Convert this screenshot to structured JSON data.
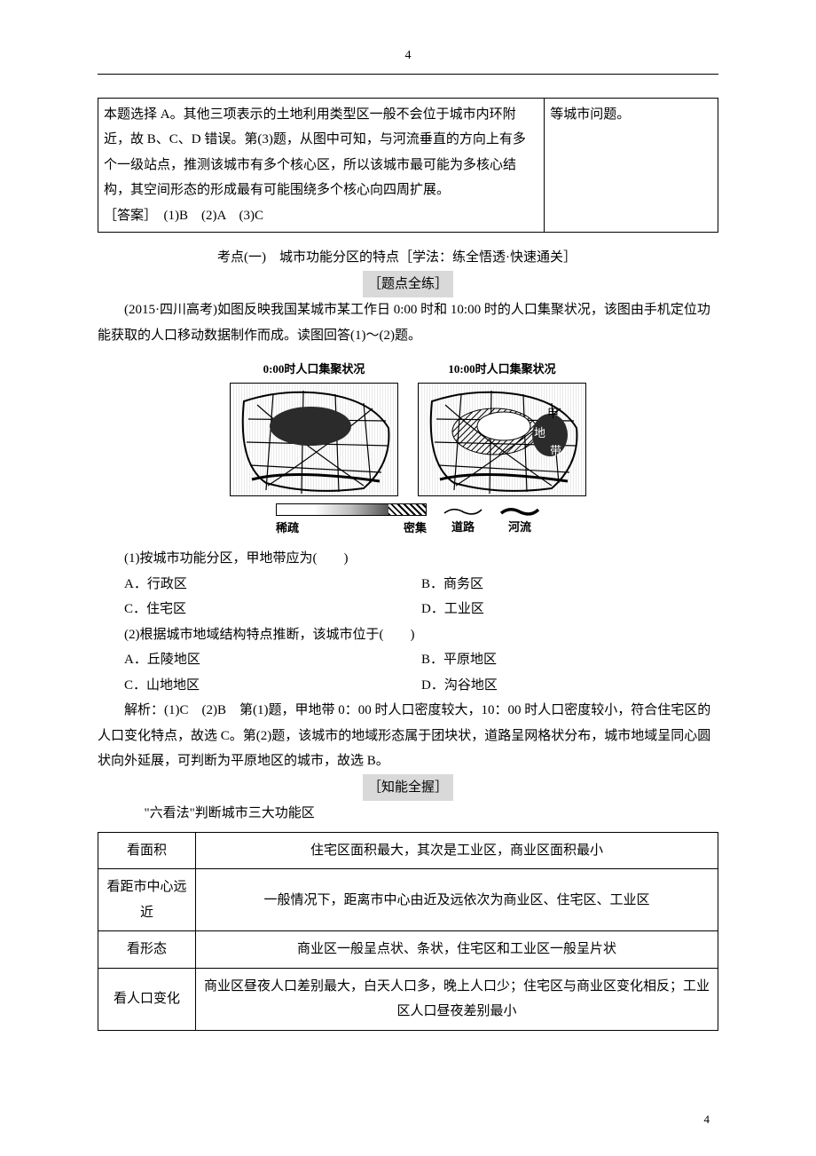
{
  "page_number_top": "4",
  "page_number_bottom": "4",
  "cont": {
    "left": "本题选择 A。其他三项表示的土地利用类型区一般不会位于城市内环附近，故 B、C、D 错误。第(3)题，从图中可知，与河流垂直的方向上有多个一级站点，推测该城市有多个核心区，所以该城市最可能为多核心结构，其空间形态的形成最有可能围绕多个核心向四周扩展。",
    "answer": "［答案］　(1)B　(2)A　(3)C",
    "right": "等城市问题。"
  },
  "section": {
    "kaodian": "考点(一)　城市功能分区的特点［学法：练全悟透·快速通关］",
    "tidian": "［题点全练］",
    "stem_intro": "(2015·四川高考)如图反映我国某城市某工作日 0:00 时和 10:00 时的人口集聚状况，该图由手机定位功能获取的人口移动数据制作而成。读图回答(1)～(2)题。",
    "map_title_left": "0:00时人口集聚状况",
    "map_title_right": "10:00时人口集聚状况",
    "legend_sparse": "稀疏",
    "legend_dense": "密集",
    "legend_road": "道路",
    "legend_river": "河流",
    "annot_jia": "甲",
    "annot_di": "地",
    "annot_dai": "带",
    "colors": {
      "text": "#000000",
      "bg": "#ffffff",
      "highlight_bg": "#d9d9d9",
      "border": "#000000"
    }
  },
  "q1": {
    "stem": "(1)按城市功能分区，甲地带应为(　　)",
    "A": "A．行政区",
    "B": "B．商务区",
    "C": "C．住宅区",
    "D": "D．工业区"
  },
  "q2": {
    "stem": "(2)根据城市地域结构特点推断，该城市位于(　　)",
    "A": "A．丘陵地区",
    "B": "B．平原地区",
    "C": "C．山地地区",
    "D": "D．沟谷地区"
  },
  "jiexi": "解析：(1)C　(2)B　第(1)题，甲地带 0：00 时人口密度较大，10：00 时人口密度较小，符合住宅区的人口变化特点，故选 C。第(2)题，该城市的地域形态属于团块状，道路呈网格状分布，城市地域呈同心圆状向外延展，可判断为平原地区的城市，故选 B。",
  "zhineng_title": "［知能全握］",
  "six_intro": "\"六看法\"判断城市三大功能区",
  "six_table": {
    "rows": [
      {
        "label": "看面积",
        "content": "住宅区面积最大，其次是工业区，商业区面积最小"
      },
      {
        "label": "看距市中心远近",
        "content": "一般情况下，距离市中心由近及远依次为商业区、住宅区、工业区"
      },
      {
        "label": "看形态",
        "content": "商业区一般呈点状、条状，住宅区和工业区一般呈片状"
      },
      {
        "label": "看人口变化",
        "content": "商业区昼夜人口差别最大，白天人口多，晚上人口少；住宅区与商业区变化相反；工业区人口昼夜差别最小"
      }
    ]
  }
}
